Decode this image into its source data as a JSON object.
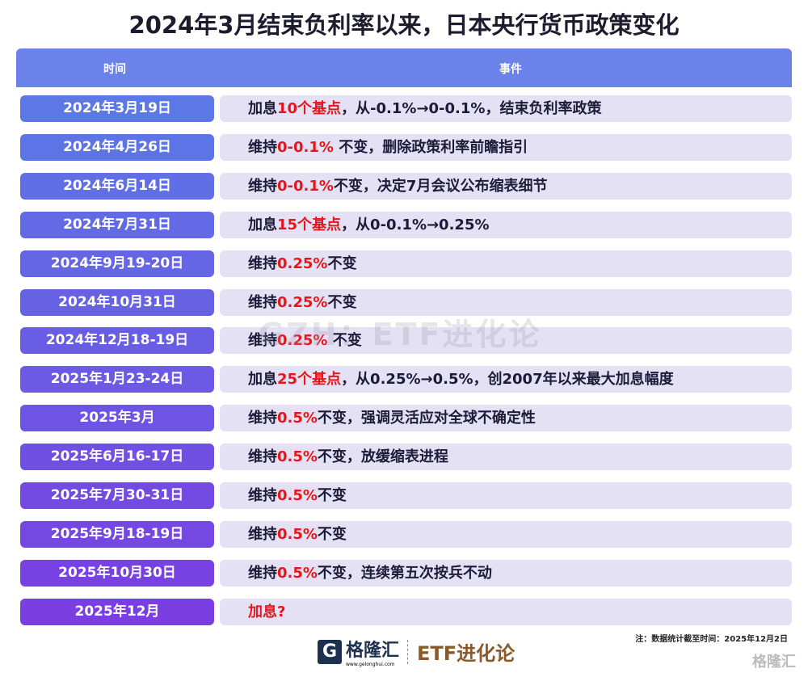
{
  "title": "2024年3月结束负利率以来，日本央行货币政策变化",
  "header": {
    "time": "时间",
    "event": "事件"
  },
  "rows": [
    {
      "date": "2024年3月19日",
      "pre": "加息",
      "red": "10个基点",
      "post": "，从-0.1%→0-0.1%，结束负利率政策"
    },
    {
      "date": "2024年4月26日",
      "pre": "维持",
      "red": "0-0.1%",
      "post": " 不变，删除政策利率前瞻指引"
    },
    {
      "date": "2024年6月14日",
      "pre": "维持",
      "red": "0-0.1%",
      "post": "不变，决定7月会议公布缩表细节"
    },
    {
      "date": "2024年7月31日",
      "pre": "加息",
      "red": "15个基点",
      "post": "，从0-0.1%→0.25%"
    },
    {
      "date": "2024年9月19-20日",
      "pre": "维持",
      "red": "0.25%",
      "post": "不变"
    },
    {
      "date": "2024年10月31日",
      "pre": "维持",
      "red": "0.25%",
      "post": "不变"
    },
    {
      "date": "2024年12月18-19日",
      "pre": "维持",
      "red": "0.25%",
      "post": " 不变"
    },
    {
      "date": "2025年1月23-24日",
      "pre": "加息",
      "red": "25个基点",
      "post": "，从0.25%→0.5%，创2007年以来最大加息幅度"
    },
    {
      "date": "2025年3月",
      "pre": "维持",
      "red": "0.5%",
      "post": "不变，强调灵活应对全球不确定性"
    },
    {
      "date": "2025年6月16-17日",
      "pre": "维持",
      "red": "0.5%",
      "post": "不变，放缓缩表进程"
    },
    {
      "date": "2025年7月30-31日",
      "pre": "维持",
      "red": "0.5%",
      "post": "不变"
    },
    {
      "date": "2025年9月18-19日",
      "pre": "维持",
      "red": "0.5%",
      "post": "不变"
    },
    {
      "date": "2025年10月30日",
      "pre": "维持",
      "red": "0.5%",
      "post": "不变，连续第五次按兵不动"
    },
    {
      "date": "2025年12月",
      "pre": "",
      "red": "加息?",
      "post": ""
    }
  ],
  "watermark": "GZH：ETF进化论",
  "note": "注：数据统计截至时间：2025年12月2日",
  "logo": {
    "mark": "G",
    "name": "格隆汇",
    "site": "www.gelonghui.com",
    "brand": "ETF进化论"
  },
  "corner": "格隆汇",
  "colors": {
    "header": "#6a82e9",
    "date_start": "#5b78e6",
    "date_end": "#7a3ee2",
    "event_bg": "#e4e1f4",
    "highlight": "#e8161a"
  }
}
